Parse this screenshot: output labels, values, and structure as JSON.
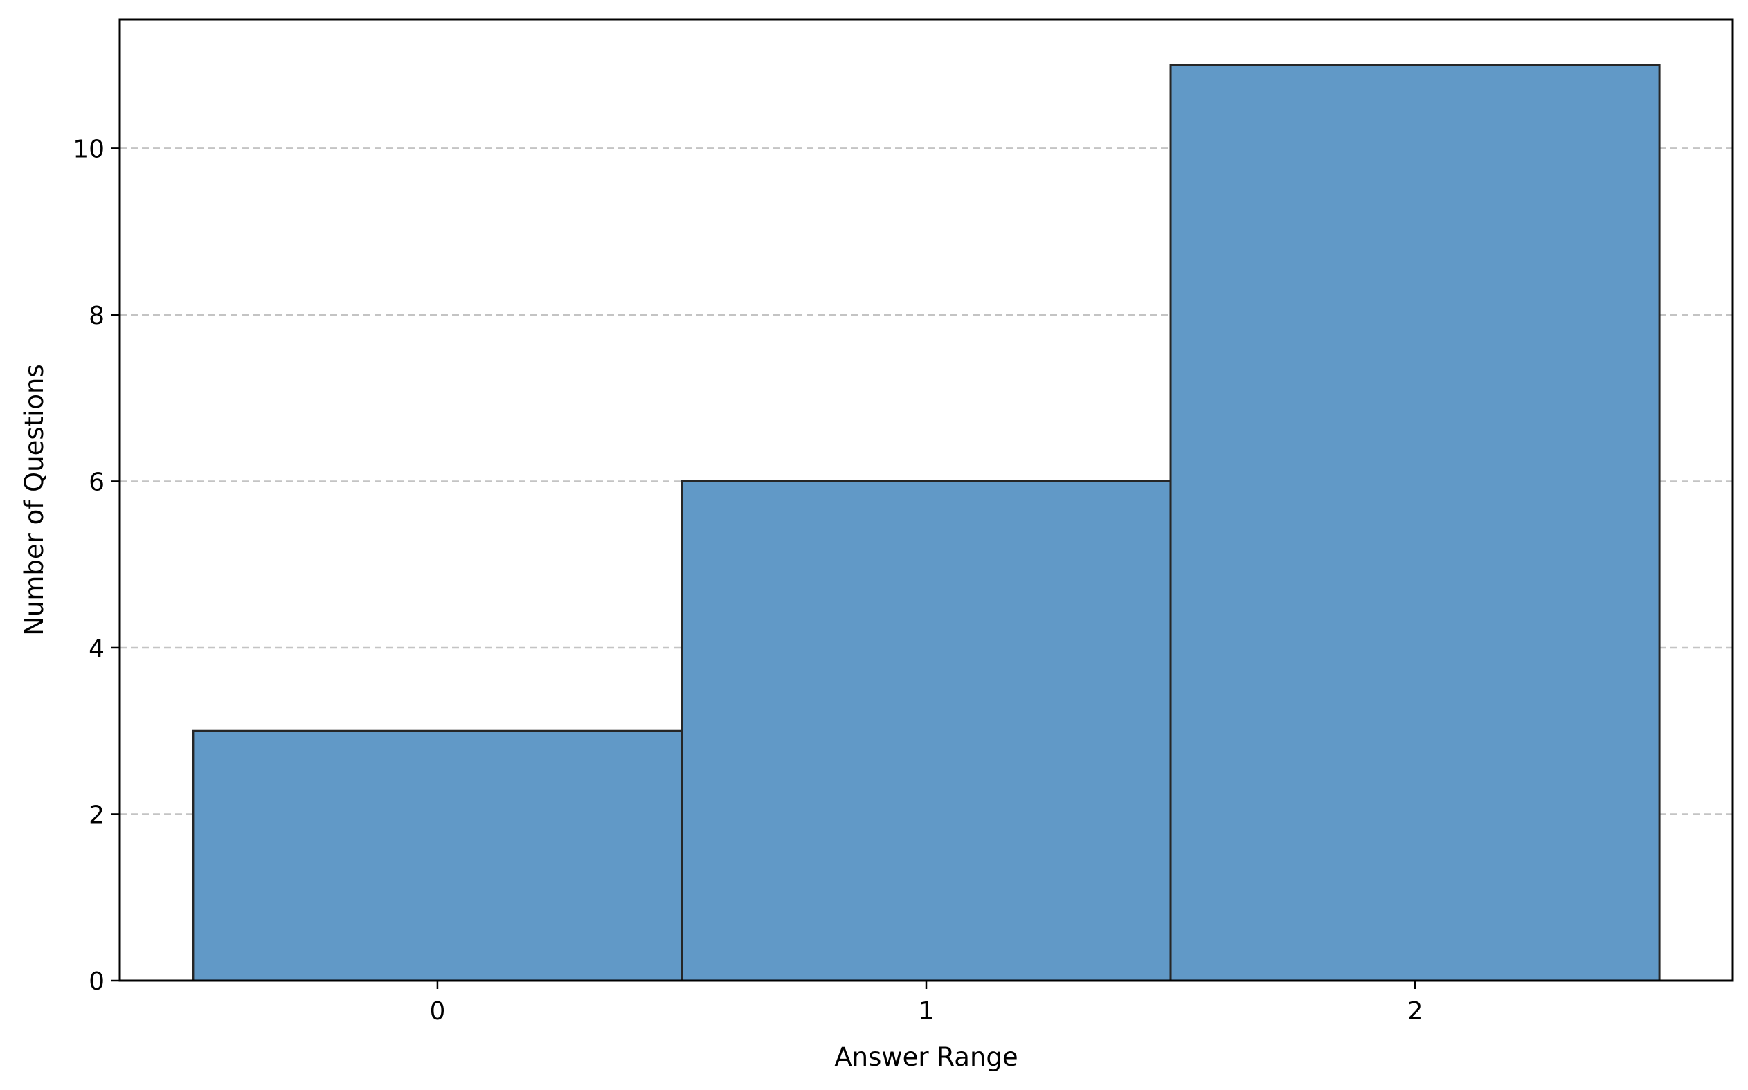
{
  "chart_data": {
    "type": "bar",
    "categories": [
      "0",
      "1",
      "2"
    ],
    "x": [
      0,
      1,
      2
    ],
    "values": [
      3,
      6,
      11
    ],
    "title": "",
    "xlabel": "Answer Range",
    "ylabel": "Number of Questions",
    "xlim": [
      -0.65,
      2.65
    ],
    "ylim": [
      0,
      11.55
    ],
    "xticks": [
      0,
      1,
      2
    ],
    "yticks": [
      0,
      2,
      4,
      6,
      8,
      10
    ],
    "bar_width": 1.0,
    "grid": "y-dashed",
    "legend": "none"
  },
  "colors": {
    "bar_fill": "#6199c7",
    "bar_edge": "#262626",
    "grid": "#c4c4c4",
    "axes": "#000000"
  }
}
